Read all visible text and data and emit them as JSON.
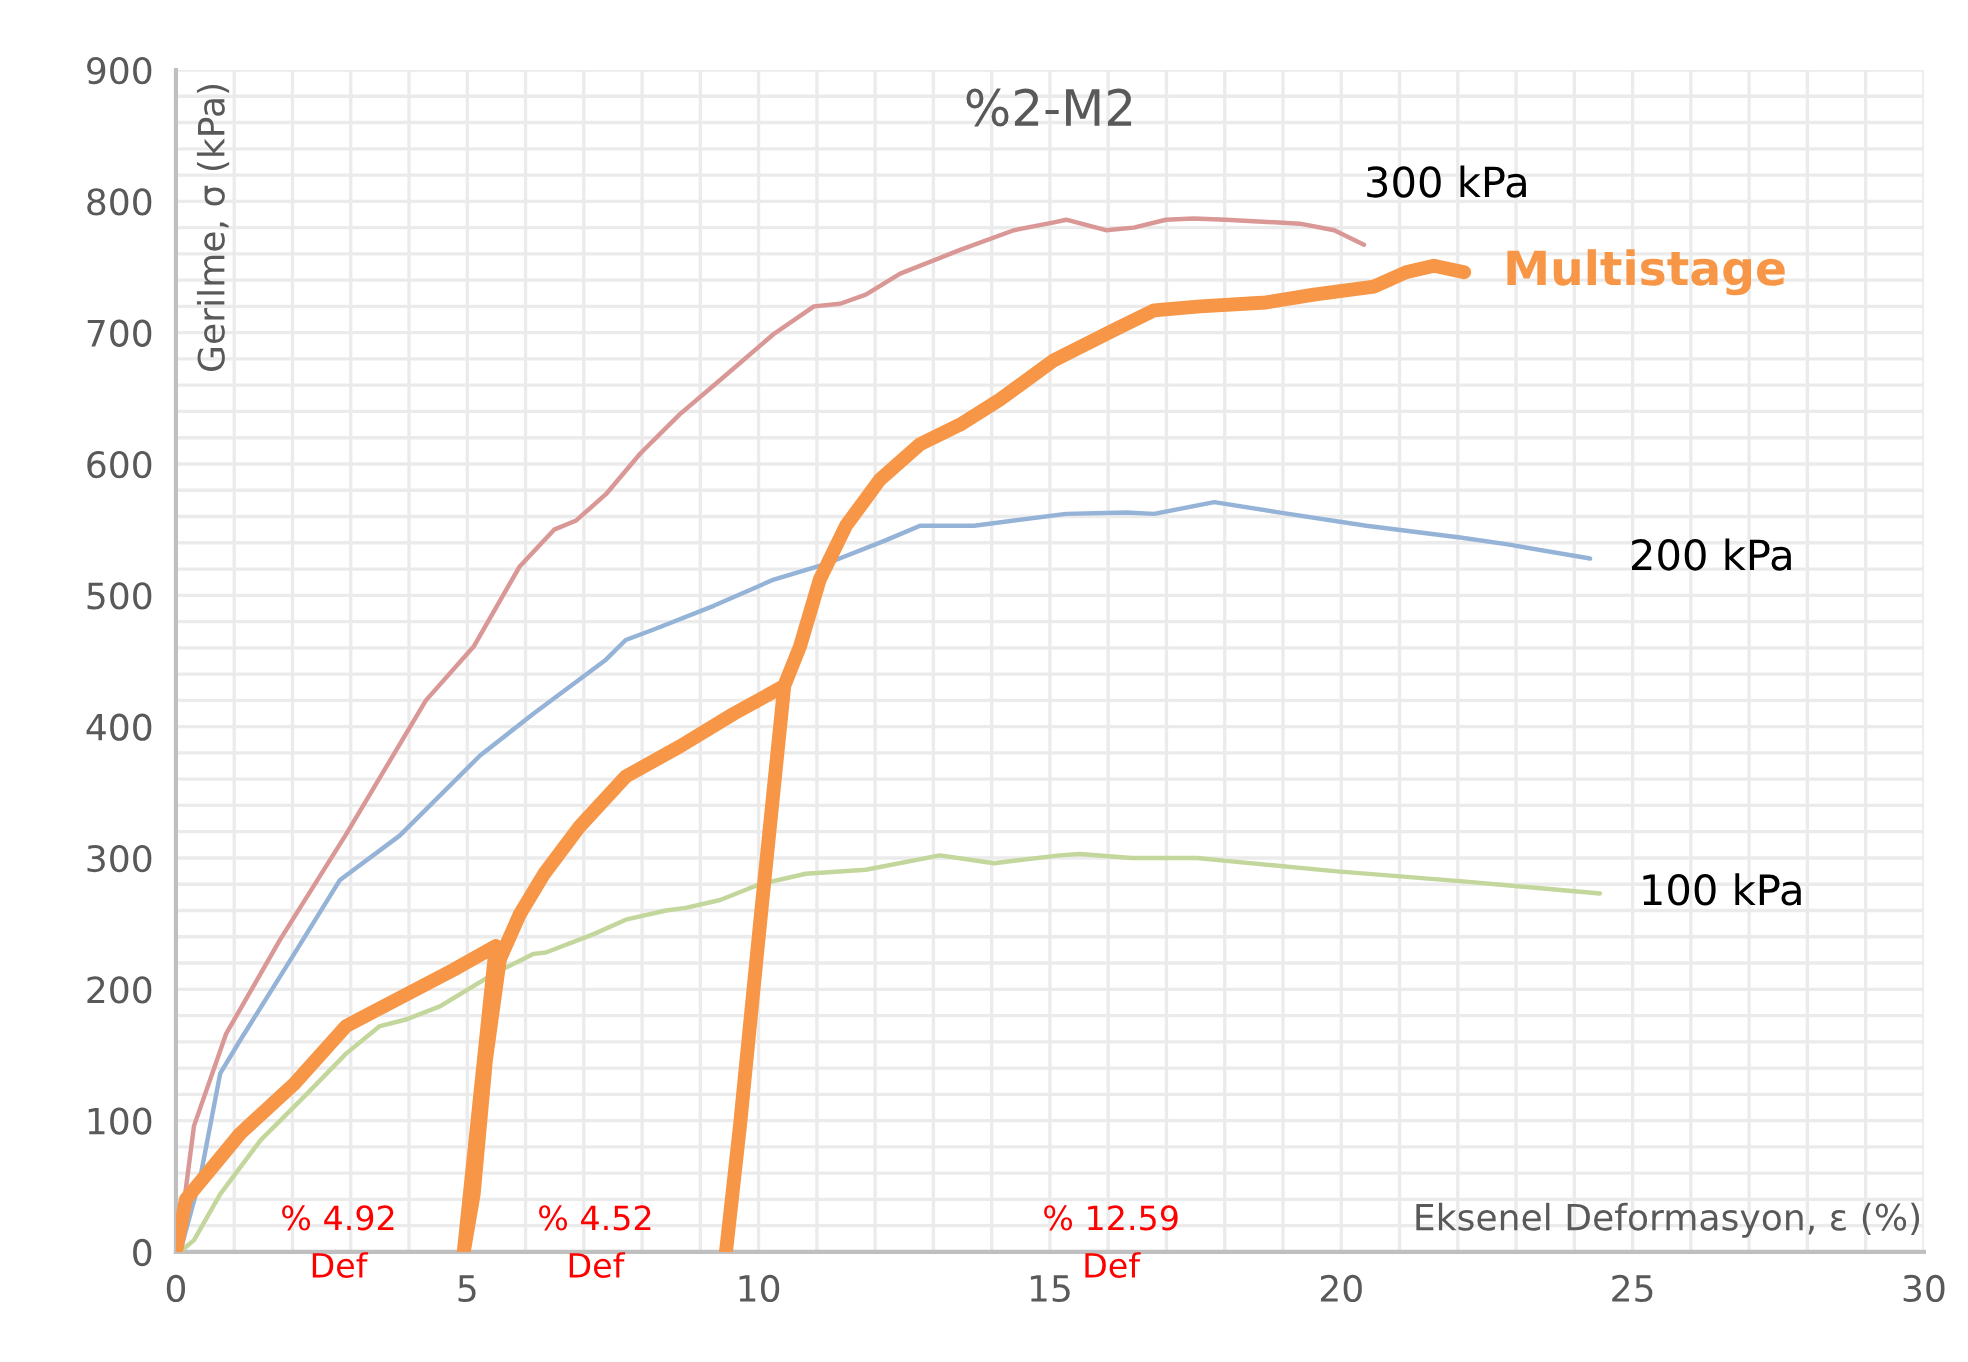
{
  "chart_data": {
    "type": "line",
    "title": "%2-M2",
    "xlabel": "Eksenel Deformasyon, ε (%)",
    "ylabel": "Gerilme, σ (kPa)",
    "xlim": [
      0,
      30
    ],
    "xticks": [
      0,
      5,
      10,
      15,
      20,
      25,
      30
    ],
    "ylim": [
      0,
      900
    ],
    "yticks": [
      0,
      100,
      200,
      300,
      400,
      500,
      600,
      700,
      800,
      900
    ],
    "grid": true,
    "marker": "none",
    "line_style": "solid",
    "annotations": [
      "% 4.92\nDef",
      "% 4.52\nDef",
      "% 12.59\nDef"
    ],
    "series": [
      {
        "name": "300 kPa",
        "color": "#d99795",
        "x": [
          0,
          0.07,
          0.31,
          0.86,
          1.79,
          2.92,
          4.29,
          5.11,
          5.9,
          6.49,
          6.87,
          7.38,
          7.97,
          8.65,
          9.34,
          10.26,
          10.95,
          11.4,
          11.84,
          12.43,
          13.46,
          14.38,
          15.07,
          15.28,
          15.96,
          16.44,
          16.99,
          17.47,
          18.02,
          19.29,
          19.88,
          20.39
        ],
        "values": [
          0,
          14,
          96,
          166,
          238,
          318,
          420,
          461,
          522,
          550,
          557,
          577,
          608,
          638,
          664,
          699,
          720,
          722,
          729,
          745,
          763,
          778,
          784,
          786,
          778,
          780,
          786,
          787,
          786,
          783,
          778,
          767
        ]
      },
      {
        "name": "200 kPa",
        "color": "#95b3d7",
        "x": [
          0.07,
          0.41,
          0.76,
          1.1,
          2.03,
          2.81,
          3.84,
          5.22,
          6.14,
          7.38,
          7.72,
          8.2,
          9.23,
          10.26,
          11.16,
          12.19,
          12.77,
          13.7,
          15.28,
          16.31,
          16.79,
          17.82,
          18.95,
          20.43,
          22.04,
          22.83,
          24.27
        ],
        "values": [
          0,
          55,
          136,
          161,
          227,
          283,
          317,
          378,
          410,
          451,
          466,
          474,
          492,
          512,
          524,
          542,
          553,
          553,
          562,
          563,
          562,
          571,
          563,
          553,
          544,
          539,
          528
        ]
      },
      {
        "name": "100 kPa",
        "color": "#c3d69b",
        "x": [
          0.07,
          0.31,
          0.76,
          1.45,
          2.24,
          2.92,
          3.5,
          3.95,
          4.53,
          5.46,
          6.14,
          6.35,
          7.17,
          7.72,
          8.41,
          8.75,
          9.34,
          10.02,
          10.81,
          11.84,
          13.11,
          14.04,
          15.17,
          15.51,
          16.4,
          17.53,
          17.98,
          19.88,
          22.14,
          24.44
        ],
        "values": [
          0,
          9,
          44,
          85,
          120,
          151,
          172,
          177,
          187,
          212,
          227,
          228,
          242,
          253,
          260,
          262,
          268,
          280,
          288,
          291,
          302,
          296,
          302,
          303,
          300,
          300,
          298,
          290,
          282,
          273
        ]
      },
      {
        "name": "Multistage",
        "color": "#f79646",
        "x": [
          0,
          0.17,
          1.1,
          2.03,
          2.92,
          3.95,
          4.77,
          5.49,
          4.94,
          5.11,
          5.32,
          5.56,
          5.9,
          6.32,
          6.93,
          7.72,
          8.65,
          9.58,
          10.44,
          10.02,
          9.68,
          9.44,
          9.68,
          10.02,
          10.44,
          10.71,
          11.05,
          11.5,
          12.08,
          12.77,
          13.46,
          14.14,
          15.07,
          16.1,
          16.79,
          17.58,
          18.71,
          19.53,
          20.56,
          21.11,
          21.59,
          22.11
        ],
        "values": [
          0,
          40,
          90,
          128,
          172,
          196,
          215,
          233,
          0,
          44,
          146,
          223,
          257,
          288,
          324,
          362,
          385,
          410,
          431,
          248,
          96,
          0,
          96,
          248,
          431,
          461,
          512,
          553,
          588,
          615,
          630,
          649,
          679,
          702,
          717,
          720,
          723,
          729,
          735,
          746,
          751,
          746
        ]
      }
    ]
  }
}
